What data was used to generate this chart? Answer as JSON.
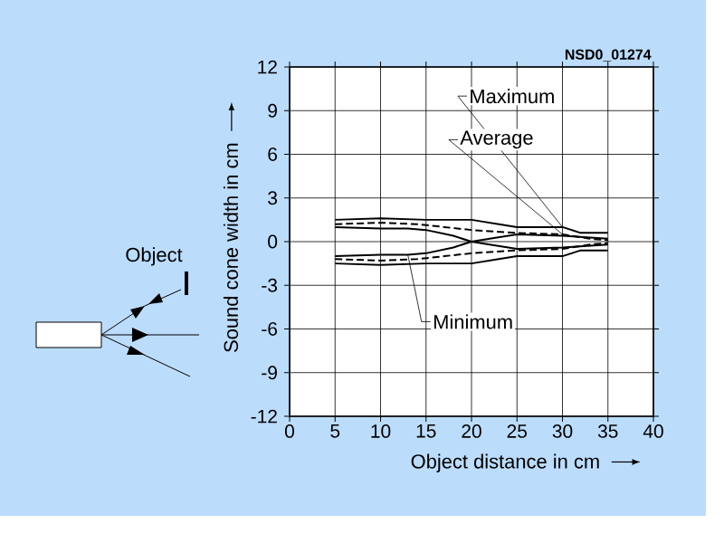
{
  "chart_data": {
    "type": "line",
    "xlabel": "Object distance in cm",
    "ylabel": "Sound cone width in cm",
    "xlim": [
      0,
      40
    ],
    "ylim": [
      -12,
      12
    ],
    "xticks": [
      0,
      5,
      10,
      15,
      20,
      25,
      30,
      35,
      40
    ],
    "yticks": [
      -12,
      -9,
      -6,
      -3,
      0,
      3,
      6,
      9,
      12
    ],
    "grid": true,
    "marker": "none",
    "annotations": [
      "NSD0_01274",
      "Object"
    ],
    "series": [
      {
        "name": "Maximum",
        "color": "#000000",
        "line_style": "solid",
        "x": [
          5,
          10,
          15,
          17,
          20,
          23,
          25,
          30,
          32,
          35
        ],
        "values": [
          1.5,
          1.6,
          1.5,
          1.5,
          1.5,
          1.2,
          1.0,
          1.0,
          0.6,
          0.6
        ]
      },
      {
        "color": "#000000",
        "line_style": "solid",
        "x": [
          5,
          10,
          15,
          17,
          20,
          23,
          25,
          30,
          32,
          35
        ],
        "values": [
          -1.5,
          -1.6,
          -1.5,
          -1.5,
          -1.5,
          -1.2,
          -1.0,
          -1.0,
          -0.6,
          -0.6
        ]
      },
      {
        "name": "Average",
        "color": "#000000",
        "line_style": "dashed",
        "x": [
          5,
          10,
          14,
          17,
          20,
          25,
          30,
          33,
          35
        ],
        "values": [
          1.2,
          1.3,
          1.2,
          1.0,
          0.8,
          0.6,
          0.5,
          0.2,
          0.1
        ]
      },
      {
        "color": "#000000",
        "line_style": "dashed",
        "x": [
          5,
          10,
          14,
          17,
          20,
          25,
          30,
          33,
          35
        ],
        "values": [
          -1.2,
          -1.3,
          -1.2,
          -1.0,
          -0.8,
          -0.6,
          -0.5,
          -0.2,
          -0.1
        ]
      },
      {
        "color": "#000000",
        "line_style": "solid",
        "x": [
          5,
          10,
          13,
          15,
          18,
          20,
          22,
          25,
          30,
          35
        ],
        "values": [
          1.0,
          0.9,
          0.9,
          0.8,
          0.4,
          0,
          0.2,
          0.5,
          0.4,
          0.2
        ]
      },
      {
        "name": "Minimum",
        "color": "#000000",
        "line_style": "solid",
        "x": [
          5,
          10,
          13,
          15,
          18,
          20,
          22,
          25,
          30,
          35
        ],
        "values": [
          -1.0,
          -0.9,
          -0.9,
          -0.8,
          -0.4,
          0,
          -0.2,
          -0.5,
          -0.4,
          -0.2
        ]
      }
    ]
  }
}
